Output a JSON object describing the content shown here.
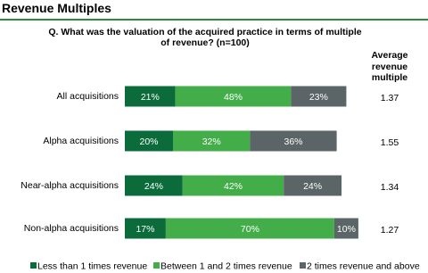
{
  "chart_data": {
    "type": "stacked-bar-horizontal",
    "title": "Revenue Multiples",
    "subtitle": "Q. What was the valuation of the acquired practice in terms of multiple of revenue? (n=100)",
    "column_header": "Average revenue multiple",
    "categories": [
      "All acquisitions",
      "Alpha acquisitions",
      "Near-alpha acquisitions",
      "Non-alpha acquisitions"
    ],
    "averages": [
      1.37,
      1.55,
      1.34,
      1.27
    ],
    "series": [
      {
        "name": "Less than 1 times revenue",
        "color": "#0b6b3a",
        "values": [
          21,
          20,
          24,
          17
        ],
        "value_labels": [
          "21%",
          "20%",
          "24%",
          "17%"
        ]
      },
      {
        "name": "Between 1 and 2 times revenue",
        "color": "#43ad49",
        "values": [
          48,
          32,
          42,
          70
        ],
        "value_labels": [
          "48%",
          "32%",
          "42%",
          "70%"
        ]
      },
      {
        "name": "2 times revenue and above",
        "color": "#5b6466",
        "values": [
          23,
          36,
          24,
          10
        ],
        "value_labels": [
          "23%",
          "36%",
          "24%",
          "10%"
        ]
      }
    ]
  }
}
